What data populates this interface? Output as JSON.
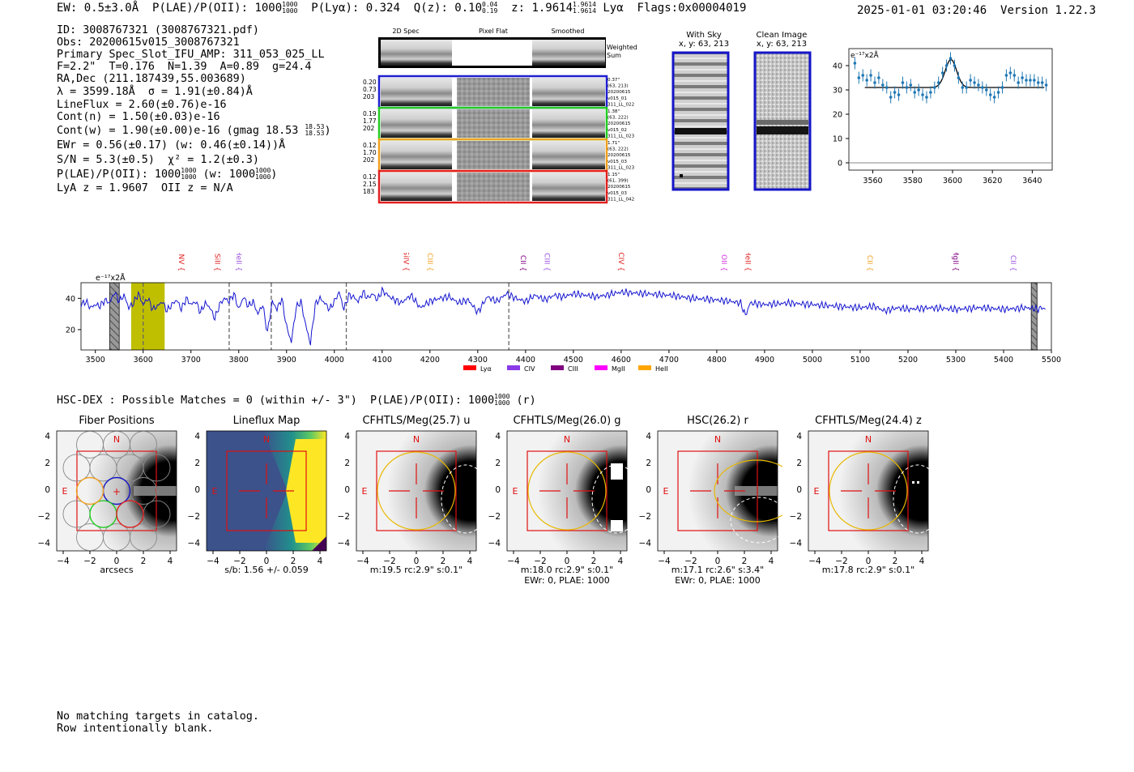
{
  "header": {
    "ew": "EW: 0.5±3.0Å",
    "plae_label": "P(LAE)/P(OII): 1000",
    "plae_hi": "1000",
    "plae_lo": "1000",
    "plya": "P(Lyα): 0.324",
    "qz_label": "Q(z): 0.10",
    "qz_hi": "0.04",
    "qz_lo": "0.19",
    "z_label": "z: 1.9614",
    "z_hi": "1.9614",
    "z_lo": "1.9614",
    "line_name": "Lyα",
    "flags": "Flags:0x00004019",
    "timestamp": "2025-01-01 03:20:46",
    "version": "Version 1.22.3"
  },
  "info": {
    "id": "ID: 3008767321 (3008767321.pdf)",
    "obs": "Obs: 20200615v015_3008767321",
    "slot": "Primary Spec_Slot_IFU_AMP: 311_053_025_LL",
    "fparams": "F=2.2\"  T=0.176  N=1.39  A=0.89  g=24.4",
    "radec": "RA,Dec (211.187439,55.003689)",
    "lambda": "λ = 3599.18Å  σ = 1.91(±0.84)Å",
    "lineflux": "LineFlux = 2.60(±0.76)e-16",
    "contn": "Cont(n) = 1.50(±0.03)e-16",
    "contw": "Cont(w) = 1.90(±0.00)e-16 (gmag 18.53",
    "gmag_hi": "18.53",
    "gmag_lo": "18.53",
    "ewr": "EWr = 0.56(±0.17) (w: 0.46(±0.14))Å",
    "sn": "S/N = 5.3(±0.5)  χ² = 1.2(±0.3)",
    "plae": "P(LAE)/P(OII): 1000",
    "plae_hi": "1000",
    "plae_lo": "1000",
    "plae_w": "(w: 1000",
    "plae_w_hi": "1000",
    "plae_w_lo": "1000",
    "plae_w_close": ")",
    "lyaz": "LyA z = 1.9607  OII z = N/A"
  },
  "spec2d": {
    "col_titles": [
      "2D Spec",
      "Pixel Flat",
      "Smoothed"
    ],
    "weighted_sum": [
      "Weighted",
      "Sum"
    ],
    "rows": [
      {
        "left": [
          "0.20",
          "0.73",
          "203"
        ],
        "right": [
          "0.37\"",
          "(63, 213)",
          "20200615",
          "v015_01",
          "311_LL_022"
        ],
        "color": "#1f1fd0"
      },
      {
        "left": [
          "0.19",
          "1.77",
          "202"
        ],
        "right": [
          "1.38\"",
          "(63, 222)",
          "20200615",
          "v015_02",
          "311_LL_023"
        ],
        "color": "#22cc22"
      },
      {
        "left": [
          "0.12",
          "1.70",
          "202"
        ],
        "right": [
          "1.71\"",
          "(63, 222)",
          "20200615",
          "v015_03",
          "311_LL_023"
        ],
        "color": "#f0a020"
      },
      {
        "left": [
          "0.12",
          "2.15",
          "183"
        ],
        "right": [
          "1.15\"",
          "(61, 399)",
          "20200615",
          "v015_03",
          "311_LL_042"
        ],
        "color": "#e02020"
      }
    ]
  },
  "with_sky": {
    "title": "With Sky",
    "coords": "x, y: 63, 213"
  },
  "clean_image": {
    "title": "Clean Image",
    "coords": "x, y: 63, 213"
  },
  "hsc": {
    "line": "HSC-DEX : Possible Matches = 0 (within +/- 3\")  P(LAE)/P(OII): 1000",
    "hi": "1000",
    "lo": "1000",
    "band": "(r)"
  },
  "cutouts": [
    {
      "title": "Fiber Positions",
      "caption": [
        "arcsecs"
      ]
    },
    {
      "title": "Lineflux Map",
      "caption": [
        "s/b: 1.56 +/- 0.059"
      ]
    },
    {
      "title": "CFHTLS/Meg(25.7) u",
      "caption": [
        "m:19.5 rc:2.9\"  s:0.1\""
      ]
    },
    {
      "title": "CFHTLS/Meg(26.0) g",
      "caption": [
        "m:18.0 rc:2.9\"  s:0.1\"",
        "EWr: 0, PLAE: 1000"
      ]
    },
    {
      "title": "HSC(26.2) r",
      "caption": [
        "m:17.1  rc:2.6\"  s:3.4\"",
        "EWr: 0, PLAE: 1000"
      ]
    },
    {
      "title": "CFHTLS/Meg(24.4) z",
      "caption": [
        "m:17.8 rc:2.9\"  s:0.1\""
      ]
    }
  ],
  "cutout_ticks": [
    "−4",
    "−2",
    "0",
    "2",
    "4"
  ],
  "compass": {
    "north": "N",
    "east": "E"
  },
  "blank": [
    "No matching targets in catalog.",
    "Row intentionally blank."
  ],
  "chart_data": [
    {
      "id": "zoom_fit",
      "type": "scatter",
      "ylabel": "e⁻¹⁷x2Å",
      "xlim": [
        3548,
        3650
      ],
      "ylim": [
        -3,
        47
      ],
      "xticks": [
        3560,
        3580,
        3600,
        3620,
        3640
      ],
      "yticks": [
        0,
        10,
        20,
        30,
        40
      ],
      "x": [
        3551,
        3553,
        3555,
        3557,
        3559,
        3561,
        3563,
        3565,
        3567,
        3569,
        3571,
        3573,
        3575,
        3577,
        3579,
        3581,
        3583,
        3585,
        3587,
        3589,
        3591,
        3593,
        3595,
        3597,
        3599,
        3601,
        3603,
        3605,
        3607,
        3609,
        3611,
        3613,
        3615,
        3617,
        3619,
        3621,
        3623,
        3625,
        3627,
        3629,
        3631,
        3633,
        3635,
        3637,
        3639,
        3641,
        3643,
        3645,
        3647
      ],
      "y": [
        41,
        35,
        36,
        34,
        36,
        33,
        35,
        32,
        31,
        27,
        29,
        28,
        33,
        31,
        32,
        29,
        30,
        28,
        27,
        29,
        31,
        33,
        37,
        40,
        43,
        40,
        35,
        31,
        31,
        34,
        33,
        32,
        31,
        30,
        28,
        27,
        29,
        31,
        36,
        37,
        36,
        33,
        35,
        34,
        34,
        34,
        33,
        33,
        32
      ],
      "fit": {
        "continuum": 31,
        "amplitude": 11.5,
        "center": 3599.2,
        "sigma": 1.91
      }
    },
    {
      "id": "full_spectrum",
      "type": "line",
      "ylabel": "e⁻¹⁷x2Å",
      "xlim": [
        3470,
        5500
      ],
      "ylim": [
        7,
        50
      ],
      "xticks": [
        3500,
        3600,
        3700,
        3800,
        3900,
        4000,
        4100,
        4200,
        4300,
        4400,
        4500,
        4600,
        4700,
        4800,
        4900,
        5000,
        5100,
        5200,
        5300,
        5400,
        5500
      ],
      "yticks": [
        20,
        40
      ],
      "highlight": {
        "from": 3575,
        "to": 3645,
        "color": "#bfbf00"
      },
      "masked": [
        [
          3530,
          3550
        ],
        [
          5458,
          5470
        ]
      ],
      "dashed": [
        3600,
        3780,
        3868,
        4025,
        4365
      ],
      "lines": [
        {
          "name": "NV",
          "x": 3670,
          "color": "#e02020"
        },
        {
          "name": "SiII",
          "x": 3745,
          "color": "#e02020"
        },
        {
          "name": "HeII",
          "x": 3790,
          "color": "#9a50e0"
        },
        {
          "name": "SiIV",
          "x": 4140,
          "color": "#e02020"
        },
        {
          "name": "CIII",
          "x": 4190,
          "color": "#f0a020"
        },
        {
          "name": "CII",
          "x": 4385,
          "color": "#800080"
        },
        {
          "name": "CIII",
          "x": 4435,
          "color": "#9a50e0"
        },
        {
          "name": "CIV",
          "x": 4590,
          "color": "#e02020"
        },
        {
          "name": "OII",
          "x": 4805,
          "color": "#d030e0"
        },
        {
          "name": "HeII",
          "x": 4855,
          "color": "#e02020"
        },
        {
          "name": "CII",
          "x": 5110,
          "color": "#f0a020"
        },
        {
          "name": "MgII",
          "x": 5290,
          "color": "#800080"
        },
        {
          "name": "CII",
          "x": 5410,
          "color": "#9a50e0"
        }
      ],
      "legend": [
        {
          "name": "Lyα",
          "color": "#ff0000"
        },
        {
          "name": "CIV",
          "color": "#8a3ae8"
        },
        {
          "name": "CIII",
          "color": "#800080"
        },
        {
          "name": "MgII",
          "color": "#ff00ff"
        },
        {
          "name": "HeII",
          "color": "#ffa500"
        }
      ],
      "x": [
        3470,
        3480,
        3490,
        3500,
        3510,
        3520,
        3530,
        3540,
        3550,
        3560,
        3570,
        3580,
        3590,
        3600,
        3610,
        3620,
        3630,
        3640,
        3650,
        3660,
        3670,
        3680,
        3690,
        3700,
        3710,
        3720,
        3730,
        3740,
        3750,
        3760,
        3770,
        3780,
        3790,
        3800,
        3810,
        3820,
        3830,
        3840,
        3850,
        3860,
        3870,
        3880,
        3890,
        3900,
        3910,
        3920,
        3930,
        3940,
        3950,
        3960,
        3970,
        3980,
        3990,
        4000,
        4010,
        4020,
        4030,
        4040,
        4050,
        4060,
        4070,
        4080,
        4090,
        4100,
        4120,
        4140,
        4160,
        4180,
        4200,
        4220,
        4240,
        4260,
        4280,
        4300,
        4320,
        4340,
        4360,
        4380,
        4400,
        4420,
        4440,
        4460,
        4480,
        4500,
        4550,
        4600,
        4650,
        4700,
        4750,
        4800,
        4830,
        4850,
        4860,
        4870,
        4900,
        4950,
        5000,
        5050,
        5100,
        5130,
        5150,
        5180,
        5200,
        5250,
        5300,
        5350,
        5400,
        5450,
        5470,
        5480,
        5490
      ],
      "y": [
        36,
        38,
        34,
        36,
        35,
        39,
        37,
        44,
        38,
        42,
        34,
        37,
        43,
        36,
        40,
        33,
        35,
        38,
        32,
        36,
        39,
        33,
        40,
        36,
        38,
        31,
        37,
        34,
        27,
        36,
        40,
        38,
        43,
        33,
        41,
        35,
        38,
        30,
        36,
        18,
        38,
        33,
        40,
        22,
        12,
        34,
        38,
        23,
        11,
        36,
        40,
        37,
        33,
        38,
        44,
        33,
        42,
        41,
        38,
        44,
        40,
        43,
        39,
        45,
        40,
        37,
        42,
        34,
        38,
        40,
        41,
        37,
        39,
        31,
        41,
        38,
        43,
        40,
        38,
        42,
        39,
        42,
        41,
        43,
        41,
        44,
        43,
        42,
        40,
        39,
        38,
        37,
        29,
        37,
        36,
        37,
        36,
        35,
        34,
        35,
        32,
        34,
        33,
        34,
        33,
        34,
        33,
        34,
        33,
        34,
        33
      ]
    }
  ]
}
